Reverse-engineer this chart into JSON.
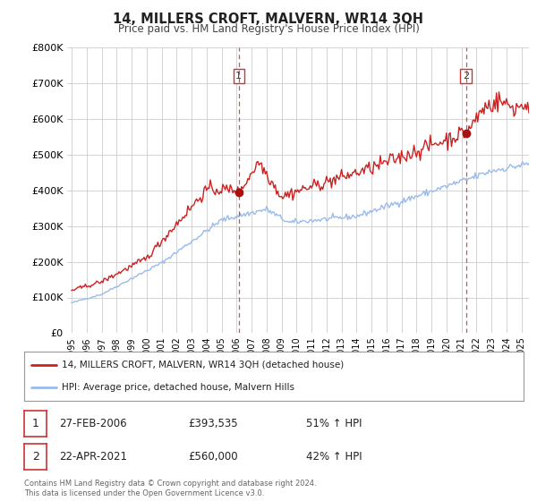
{
  "title": "14, MILLERS CROFT, MALVERN, WR14 3QH",
  "subtitle": "Price paid vs. HM Land Registry's House Price Index (HPI)",
  "plot_bg_color": "#ffffff",
  "grid_color": "#cccccc",
  "line1_color": "#cc2222",
  "line2_color": "#99bbee",
  "marker_color": "#aa1111",
  "vline_color": "#cc3333",
  "transaction1_date_num": 2006.15,
  "transaction1_price": 393535,
  "transaction2_date_num": 2021.31,
  "transaction2_price": 560000,
  "legend_label1": "14, MILLERS CROFT, MALVERN, WR14 3QH (detached house)",
  "legend_label2": "HPI: Average price, detached house, Malvern Hills",
  "table_row1": [
    "1",
    "27-FEB-2006",
    "£393,535",
    "51% ↑ HPI"
  ],
  "table_row2": [
    "2",
    "22-APR-2021",
    "£560,000",
    "42% ↑ HPI"
  ],
  "footer": "Contains HM Land Registry data © Crown copyright and database right 2024.\nThis data is licensed under the Open Government Licence v3.0.",
  "ylim": [
    0,
    800000
  ],
  "xlim_start": 1994.7,
  "xlim_end": 2025.5,
  "yticks": [
    0,
    100000,
    200000,
    300000,
    400000,
    500000,
    600000,
    700000,
    800000
  ],
  "ytick_labels": [
    "£0",
    "£100K",
    "£200K",
    "£300K",
    "£400K",
    "£500K",
    "£600K",
    "£700K",
    "£800K"
  ],
  "xticks": [
    1995,
    1996,
    1997,
    1998,
    1999,
    2000,
    2001,
    2002,
    2003,
    2004,
    2005,
    2006,
    2007,
    2008,
    2009,
    2010,
    2011,
    2012,
    2013,
    2014,
    2015,
    2016,
    2017,
    2018,
    2019,
    2020,
    2021,
    2022,
    2023,
    2024,
    2025
  ]
}
